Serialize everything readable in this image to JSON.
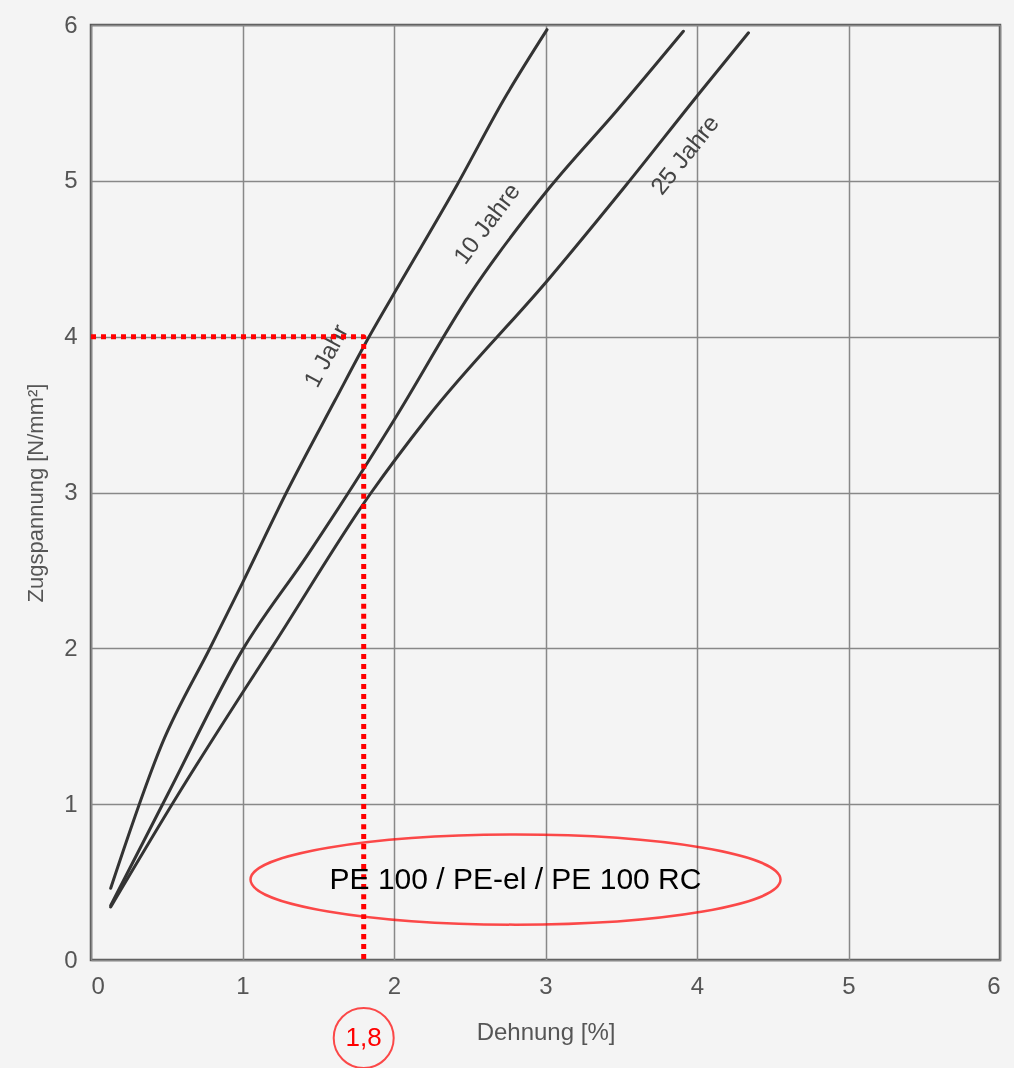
{
  "chart_data": {
    "type": "line",
    "xlabel": "Dehnung [%]",
    "ylabel": "Zugspannung [N/mm²]",
    "xlim": [
      0,
      6
    ],
    "ylim": [
      0,
      6
    ],
    "xticks": [
      0,
      1,
      2,
      3,
      4,
      5,
      6
    ],
    "yticks": [
      0,
      1,
      2,
      3,
      4,
      5,
      6
    ],
    "grid": true,
    "line_style": "solid",
    "series": [
      {
        "name": "1 Jahr",
        "color": "#333333",
        "x": [
          0.13,
          0.47,
          0.79,
          1.0,
          1.29,
          1.61,
          1.83,
          2.05,
          2.42,
          2.73,
          3.01
        ],
        "values": [
          0.46,
          1.39,
          2.01,
          2.42,
          3.0,
          3.59,
          3.99,
          4.36,
          4.98,
          5.53,
          5.97
        ]
      },
      {
        "name": "10 Jahre",
        "color": "#333333",
        "x": [
          0.13,
          0.51,
          1.0,
          1.43,
          1.7,
          2.01,
          2.5,
          3.03,
          3.47,
          3.91
        ],
        "values": [
          0.35,
          1.07,
          1.99,
          2.6,
          3.0,
          3.48,
          4.27,
          4.96,
          5.45,
          5.96
        ]
      },
      {
        "name": "25 Jahre",
        "color": "#333333",
        "x": [
          0.13,
          0.58,
          1.03,
          1.19,
          1.85,
          2.22,
          3.03,
          3.53,
          4.03,
          4.34
        ],
        "values": [
          0.34,
          1.07,
          1.76,
          2.0,
          3.0,
          3.48,
          4.38,
          4.97,
          5.58,
          5.95
        ]
      },
      {
        "type": "line",
        "color": "#ff0000",
        "line_style": "dotted",
        "x": [
          0,
          1.8,
          1.8
        ],
        "values": [
          4,
          4,
          0
        ]
      }
    ],
    "annotations": [
      {
        "text": "1,8",
        "x": 1.8,
        "y": 0
      },
      "PE 100 / PE-el / PE 100 RC"
    ]
  }
}
